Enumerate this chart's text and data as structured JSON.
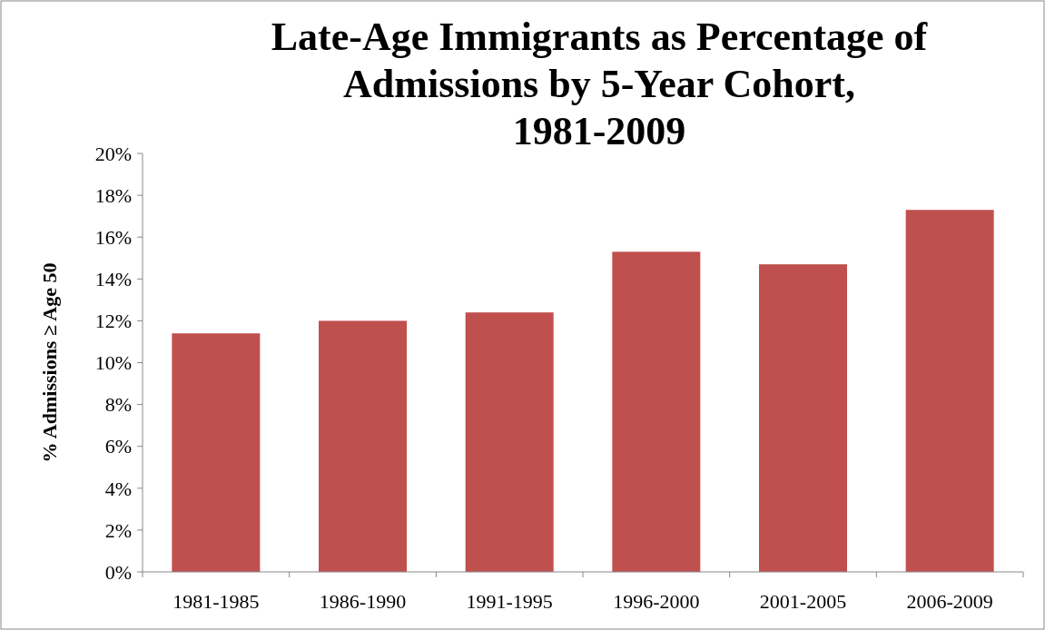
{
  "chart_data": {
    "type": "bar",
    "title": "Late-Age Immigrants as Percentage of Admissions by 5-Year Cohort, 1981-2009",
    "ylabel": "% Admissions ≥ Age 50",
    "categories": [
      "1981-1985",
      "1986-1990",
      "1991-1995",
      "1996-2000",
      "2001-2005",
      "2006-2009"
    ],
    "values": [
      11.4,
      12.0,
      12.4,
      15.3,
      14.7,
      17.3
    ],
    "color": "#c0504d",
    "ylim": [
      0,
      20
    ],
    "yticks": [
      {
        "value": 0,
        "label": "0%"
      },
      {
        "value": 2,
        "label": "2%"
      },
      {
        "value": 4,
        "label": "4%"
      },
      {
        "value": 6,
        "label": "6%"
      },
      {
        "value": 8,
        "label": "8%"
      },
      {
        "value": 10,
        "label": "10%"
      },
      {
        "value": 12,
        "label": "12%"
      },
      {
        "value": 14,
        "label": "14%"
      },
      {
        "value": 16,
        "label": "16%"
      },
      {
        "value": 18,
        "label": "18%"
      },
      {
        "value": 20,
        "label": "20%"
      }
    ],
    "grid": false
  }
}
